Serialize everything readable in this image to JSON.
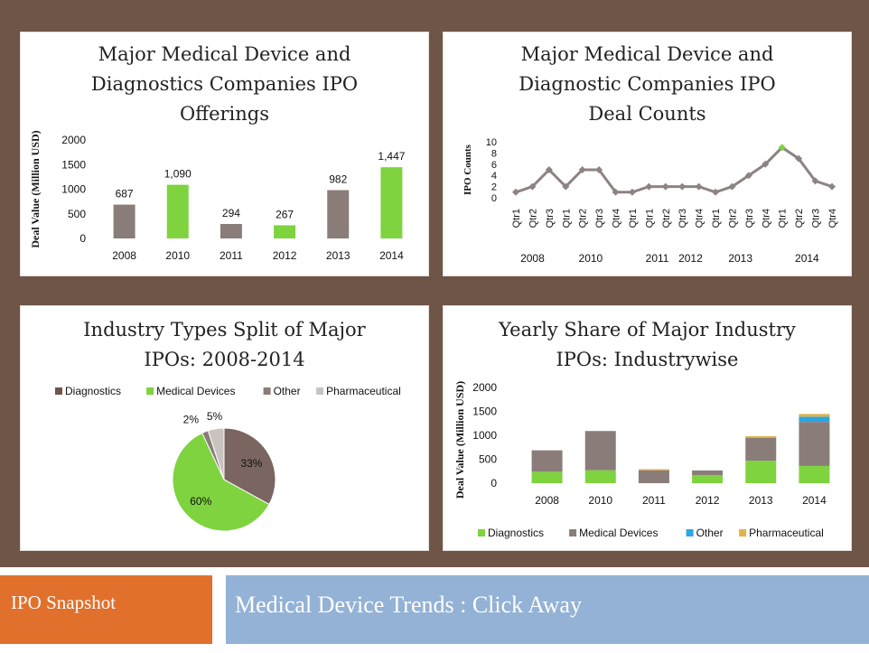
{
  "colors": {
    "frame": "#6f5448",
    "gray": "#8a7d79",
    "green": "#7ed33f",
    "blue": "#2ba6e0",
    "gold": "#e2b24a",
    "light_gray": "#c9c3c0",
    "line": "#8d8382",
    "accent_marker": "#7ed33f",
    "orange_tab": "#e0702c",
    "blue_tab": "#93b2d5"
  },
  "footer": {
    "left": "IPO Snapshot",
    "right": "Medical Device Trends : Click Away"
  },
  "chart_data": [
    {
      "type": "bar",
      "title_lines": [
        "Major Medical Device and",
        "Diagnostics Companies IPO",
        "Offerings"
      ],
      "ylabel": "Deal Value (Million USD)",
      "ylim": [
        0,
        2000
      ],
      "yticks": [
        "0",
        "500",
        "1000",
        "1500",
        "2000"
      ],
      "categories": [
        "2008",
        "2010",
        "2011",
        "2012",
        "2013",
        "2014"
      ],
      "values": [
        687,
        1090,
        294,
        267,
        982,
        1447
      ],
      "value_labels": [
        "687",
        "1,090",
        "294",
        "267",
        "982",
        "1,447"
      ],
      "bar_colors": [
        "gray",
        "green",
        "gray",
        "green",
        "gray",
        "green"
      ]
    },
    {
      "type": "line",
      "title_lines": [
        "Major Medical Device and",
        "Diagnostic Companies IPO",
        "Deal Counts"
      ],
      "ylabel": "IPO Counts",
      "ylim": [
        0,
        10
      ],
      "yticks": [
        "0",
        "2",
        "4",
        "6",
        "8",
        "10"
      ],
      "x": [
        "Qtr1",
        "Qtr2",
        "Qtr3",
        "Qtr1",
        "Qtr2",
        "Qtr3",
        "Qtr4",
        "Qtr1",
        "Qtr1",
        "Qtr2",
        "Qtr3",
        "Qtr4",
        "Qtr1",
        "Qtr2",
        "Qtr3",
        "Qtr4",
        "Qtr1",
        "Qtr2",
        "Qtr3",
        "Qtr4"
      ],
      "values": [
        1,
        2,
        5,
        2,
        5,
        5,
        1,
        1,
        2,
        2,
        2,
        2,
        1,
        2,
        4,
        6,
        9,
        7,
        3,
        2
      ],
      "highlight_index": 16,
      "year_labels": [
        {
          "label": "2008",
          "index": 1
        },
        {
          "label": "2010",
          "index": 4.5
        },
        {
          "label": "2011",
          "index": 8.5
        },
        {
          "label": "2012",
          "index": 10.5
        },
        {
          "label": "2013",
          "index": 13.5
        },
        {
          "label": "2014",
          "index": 17.5
        }
      ]
    },
    {
      "type": "pie",
      "title_lines": [
        "Industry Types Split of Major",
        "IPOs: 2008-2014"
      ],
      "legend": [
        "Diagnostics",
        "Medical Devices",
        "Other",
        "Pharmaceutical"
      ],
      "legend_colors": [
        "#6f5448",
        "#7ed33f",
        "#8a7d79",
        "#c9c3c0"
      ],
      "slices": [
        {
          "name": "Diagnostics",
          "value": 33,
          "label": "33%",
          "color": "#7a6560"
        },
        {
          "name": "Medical Devices",
          "value": 60,
          "label": "60%",
          "color": "#7ed33f"
        },
        {
          "name": "Other",
          "value": 2,
          "label": "2%",
          "color": "#8a7d79"
        },
        {
          "name": "Pharmaceutical",
          "value": 5,
          "label": "5%",
          "color": "#c9c3c0"
        }
      ]
    },
    {
      "type": "bar",
      "stacked": true,
      "title_lines": [
        "Yearly Share of Major Industry",
        "IPOs: Industrywise"
      ],
      "ylabel": "Deal Value (Million USD)",
      "ylim": [
        0,
        2000
      ],
      "yticks": [
        "0",
        "500",
        "1000",
        "1500",
        "2000"
      ],
      "categories": [
        "2008",
        "2010",
        "2011",
        "2012",
        "2013",
        "2014"
      ],
      "series": [
        {
          "name": "Diagnostics",
          "color": "#7ed33f",
          "values": [
            240,
            270,
            0,
            170,
            470,
            360
          ]
        },
        {
          "name": "Medical Devices",
          "color": "#8a7d79",
          "values": [
            447,
            820,
            270,
            97,
            480,
            920
          ]
        },
        {
          "name": "Other",
          "color": "#2ba6e0",
          "values": [
            0,
            0,
            0,
            0,
            0,
            110
          ]
        },
        {
          "name": "Pharmaceutical",
          "color": "#e2b24a",
          "values": [
            0,
            0,
            24,
            0,
            32,
            57
          ]
        }
      ],
      "legend": [
        "Diagnostics",
        "Medical Devices",
        "Other",
        "Pharmaceutical"
      ]
    }
  ]
}
